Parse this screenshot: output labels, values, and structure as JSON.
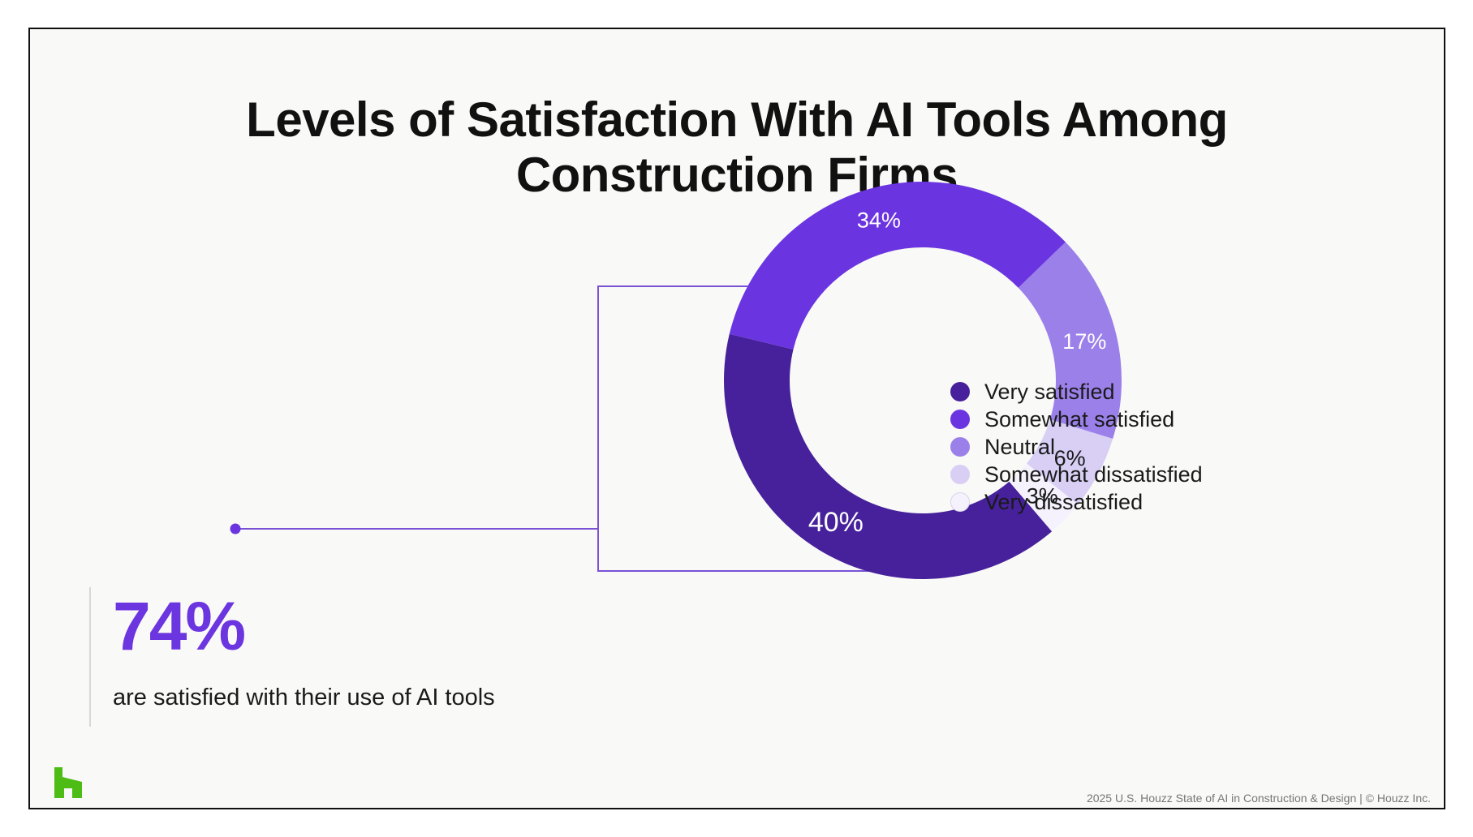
{
  "slide": {
    "title_line1": "Levels of Satisfaction With AI Tools Among",
    "title_line2": "Construction Firms",
    "callout": {
      "value": "74%",
      "caption": "are satisfied with their use of AI tools"
    },
    "footer": "2025 U.S. Houzz State of AI in Construction & Design | © Houzz Inc.",
    "logo_icon": "houzz-logo-icon"
  },
  "colors": {
    "accent": "#6b35e0",
    "connector": "#7a52d6",
    "logo": "#4dbc15"
  },
  "chart_data": {
    "type": "pie",
    "donut": true,
    "title": "Levels of Satisfaction With AI Tools Among Construction Firms",
    "legend_position": "center",
    "categories": [
      "Very satisfied",
      "Somewhat satisfied",
      "Neutral",
      "Somewhat dissatisfied",
      "Very dissatisfied"
    ],
    "values": [
      40,
      34,
      17,
      6,
      3
    ],
    "labels": [
      "40%",
      "34%",
      "17%",
      "6%",
      "3%"
    ],
    "colors": [
      "#46219b",
      "#6a35e0",
      "#9b80ea",
      "#d9cff5",
      "#f5f2fd"
    ],
    "label_colors": [
      "#ffffff",
      "#ffffff",
      "#ffffff",
      "#1a1a1a",
      "#1a1a1a"
    ]
  }
}
